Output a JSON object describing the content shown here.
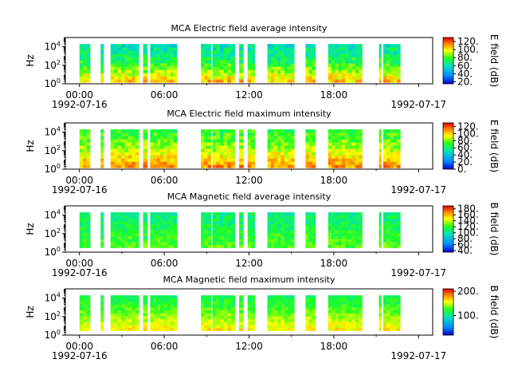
{
  "chart_data": [
    {
      "type": "heatmap",
      "title": "MCA  Electric field average intensity",
      "ylabel": "Hz",
      "y_scale": "log",
      "ylim": [
        1,
        100000
      ],
      "y_ticks": [
        {
          "value": 1,
          "label": "10^0"
        },
        {
          "value": 100,
          "label": "10^2"
        },
        {
          "value": 10000,
          "label": "10^4"
        }
      ],
      "x_ticks": [
        "00:00",
        "06:00",
        "12:00",
        "18:00"
      ],
      "x_date_start": "1992-07-16",
      "x_date_end": "1992-07-17",
      "xlim_hours": [
        -1,
        25
      ],
      "colorbar": {
        "label": "E field (dB)",
        "range": [
          15,
          130
        ],
        "ticks": [
          20,
          40,
          60,
          80,
          100,
          120
        ],
        "tick_labels": [
          "20.",
          "40.",
          "60.",
          "80.",
          "100.",
          "120."
        ]
      },
      "data_intervals_hours": [
        [
          0.0,
          0.75
        ],
        [
          1.5,
          1.7
        ],
        [
          2.2,
          4.2
        ],
        [
          4.5,
          4.8
        ],
        [
          5.0,
          6.9
        ],
        [
          8.6,
          9.3
        ],
        [
          9.4,
          11.0
        ],
        [
          11.3,
          11.6
        ],
        [
          11.9,
          12.4
        ],
        [
          13.3,
          15.2
        ],
        [
          16.0,
          16.7
        ],
        [
          17.6,
          20.0
        ],
        [
          21.2,
          21.35
        ],
        [
          21.5,
          22.7
        ]
      ],
      "data_band_hz": [
        1.4,
        20000
      ],
      "typical_level_db": {
        "low_freq": 105,
        "mid_freq": 75,
        "high_freq": 60
      }
    },
    {
      "type": "heatmap",
      "title": "MCA  Electric field maximum intensity",
      "ylabel": "Hz",
      "y_scale": "log",
      "ylim": [
        1,
        100000
      ],
      "y_ticks": [
        {
          "value": 1,
          "label": "10^0"
        },
        {
          "value": 100,
          "label": "10^2"
        },
        {
          "value": 10000,
          "label": "10^4"
        }
      ],
      "x_ticks": [
        "00:00",
        "06:00",
        "12:00",
        "18:00"
      ],
      "x_date_start": "1992-07-16",
      "x_date_end": "1992-07-17",
      "xlim_hours": [
        -1,
        25
      ],
      "colorbar": {
        "label": "E field (dB)",
        "range": [
          0,
          130
        ],
        "ticks": [
          0,
          20,
          40,
          60,
          80,
          100,
          120
        ],
        "tick_labels": [
          "0.",
          "20.",
          "40.",
          "60.",
          "80.",
          "100.",
          "120."
        ]
      },
      "data_intervals_hours": [
        [
          0.0,
          0.75
        ],
        [
          1.5,
          1.7
        ],
        [
          2.2,
          4.2
        ],
        [
          4.5,
          4.8
        ],
        [
          5.0,
          6.9
        ],
        [
          8.6,
          9.3
        ],
        [
          9.4,
          11.0
        ],
        [
          11.3,
          11.6
        ],
        [
          11.9,
          12.4
        ],
        [
          13.3,
          15.2
        ],
        [
          16.0,
          16.7
        ],
        [
          17.6,
          20.0
        ],
        [
          21.2,
          21.35
        ],
        [
          21.5,
          22.7
        ]
      ],
      "data_band_hz": [
        1.4,
        20000
      ],
      "typical_level_db": {
        "low_freq": 110,
        "mid_freq": 85,
        "high_freq": 70
      }
    },
    {
      "type": "heatmap",
      "title": "MCA  Magnetic field average intensity",
      "ylabel": "Hz",
      "y_scale": "log",
      "ylim": [
        1,
        100000
      ],
      "y_ticks": [
        {
          "value": 1,
          "label": "10^0"
        },
        {
          "value": 100,
          "label": "10^2"
        },
        {
          "value": 10000,
          "label": "10^4"
        }
      ],
      "x_ticks": [
        "00:00",
        "06:00",
        "12:00",
        "18:00"
      ],
      "x_date_start": "1992-07-16",
      "x_date_end": "1992-07-17",
      "xlim_hours": [
        -1,
        25
      ],
      "colorbar": {
        "label": "B field (dB)",
        "range": [
          35,
          190
        ],
        "ticks": [
          40,
          60,
          80,
          100,
          120,
          140,
          160,
          180
        ],
        "tick_labels": [
          "40.",
          "60.",
          "80.",
          "100.",
          "120.",
          "140.",
          "160.",
          "180."
        ]
      },
      "data_intervals_hours": [
        [
          0.0,
          0.75
        ],
        [
          1.5,
          1.7
        ],
        [
          2.2,
          4.2
        ],
        [
          4.5,
          4.8
        ],
        [
          5.0,
          6.9
        ],
        [
          8.6,
          9.3
        ],
        [
          9.4,
          11.0
        ],
        [
          11.3,
          11.6
        ],
        [
          11.9,
          12.4
        ],
        [
          13.3,
          15.2
        ],
        [
          16.0,
          16.7
        ],
        [
          17.6,
          20.0
        ],
        [
          21.2,
          21.35
        ],
        [
          21.5,
          22.7
        ]
      ],
      "data_band_hz": [
        3,
        20000
      ],
      "typical_level_db": {
        "low_freq": 125,
        "mid_freq": 115,
        "high_freq": 105
      }
    },
    {
      "type": "heatmap",
      "title": "MCA  Magnetic field maximum intensity",
      "ylabel": "Hz",
      "y_scale": "log",
      "ylim": [
        1,
        100000
      ],
      "y_ticks": [
        {
          "value": 1,
          "label": "10^0"
        },
        {
          "value": 100,
          "label": "10^2"
        },
        {
          "value": 10000,
          "label": "10^4"
        }
      ],
      "x_ticks": [
        "00:00",
        "06:00",
        "12:00",
        "18:00"
      ],
      "x_date_start": "1992-07-16",
      "x_date_end": "1992-07-17",
      "xlim_hours": [
        -1,
        25
      ],
      "colorbar": {
        "label": "B field (dB)",
        "range": [
          20,
          210
        ],
        "ticks": [
          100,
          200
        ],
        "tick_labels": [
          "100.",
          "200."
        ]
      },
      "data_intervals_hours": [
        [
          0.0,
          0.75
        ],
        [
          1.5,
          1.7
        ],
        [
          2.2,
          4.2
        ],
        [
          4.5,
          4.8
        ],
        [
          5.0,
          6.9
        ],
        [
          8.6,
          9.3
        ],
        [
          9.4,
          11.0
        ],
        [
          11.3,
          11.6
        ],
        [
          11.9,
          12.4
        ],
        [
          13.3,
          15.2
        ],
        [
          16.0,
          16.7
        ],
        [
          17.6,
          20.0
        ],
        [
          21.2,
          21.35
        ],
        [
          21.5,
          22.7
        ]
      ],
      "data_band_hz": [
        3,
        20000
      ],
      "typical_level_db": {
        "low_freq": 160,
        "mid_freq": 135,
        "high_freq": 115
      }
    }
  ]
}
